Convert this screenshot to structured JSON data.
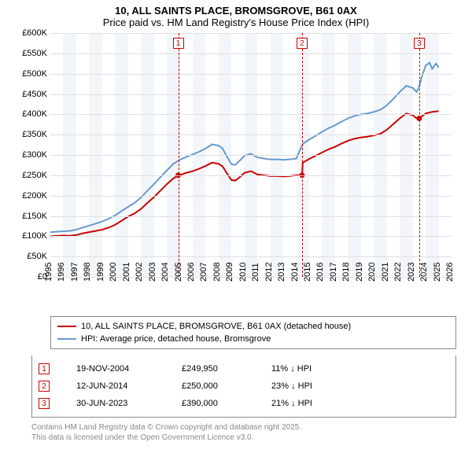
{
  "title": {
    "line1": "10, ALL SAINTS PLACE, BROMSGROVE, B61 0AX",
    "line2": "Price paid vs. HM Land Registry's House Price Index (HPI)"
  },
  "chart": {
    "type": "line",
    "background_color": "#ffffff",
    "band_color": "#f2f6fa",
    "grid_color": "#e0e0e0",
    "x_min": 1995,
    "x_max": 2026,
    "x_ticks": [
      1995,
      1996,
      1997,
      1998,
      1999,
      2000,
      2001,
      2002,
      2003,
      2004,
      2005,
      2006,
      2007,
      2008,
      2009,
      2010,
      2011,
      2012,
      2013,
      2014,
      2015,
      2016,
      2017,
      2018,
      2019,
      2020,
      2021,
      2022,
      2023,
      2024,
      2025,
      2026
    ],
    "y_min": 0,
    "y_max": 600000,
    "y_ticks": [
      0,
      50000,
      100000,
      150000,
      200000,
      250000,
      300000,
      350000,
      400000,
      450000,
      500000,
      550000,
      600000
    ],
    "y_tick_labels": [
      "£0",
      "£50K",
      "£100K",
      "£150K",
      "£200K",
      "£250K",
      "£300K",
      "£350K",
      "£400K",
      "£450K",
      "£500K",
      "£550K",
      "£600K"
    ],
    "series": [
      {
        "name": "property",
        "color": "#cc0000",
        "width": 2,
        "points": [
          [
            1995.0,
            100000
          ],
          [
            1995.5,
            101000
          ],
          [
            1996.0,
            101500
          ],
          [
            1996.5,
            101000
          ],
          [
            1997.0,
            103000
          ],
          [
            1997.5,
            107000
          ],
          [
            1998.0,
            110000
          ],
          [
            1998.5,
            113000
          ],
          [
            1999.0,
            116000
          ],
          [
            1999.5,
            121000
          ],
          [
            2000.0,
            128000
          ],
          [
            2000.5,
            138000
          ],
          [
            2001.0,
            148000
          ],
          [
            2001.5,
            156000
          ],
          [
            2002.0,
            167000
          ],
          [
            2002.5,
            182000
          ],
          [
            2003.0,
            196000
          ],
          [
            2003.5,
            212000
          ],
          [
            2004.0,
            228000
          ],
          [
            2004.5,
            242000
          ],
          [
            2004.88,
            249950
          ],
          [
            2005.0,
            250000
          ],
          [
            2005.5,
            256000
          ],
          [
            2006.0,
            260000
          ],
          [
            2006.5,
            266000
          ],
          [
            2007.0,
            273000
          ],
          [
            2007.5,
            281000
          ],
          [
            2008.0,
            278000
          ],
          [
            2008.3,
            272000
          ],
          [
            2008.7,
            252000
          ],
          [
            2009.0,
            238000
          ],
          [
            2009.3,
            237000
          ],
          [
            2009.7,
            247000
          ],
          [
            2010.0,
            256000
          ],
          [
            2010.5,
            260000
          ],
          [
            2011.0,
            252000
          ],
          [
            2011.5,
            250000
          ],
          [
            2012.0,
            248000
          ],
          [
            2012.5,
            248000
          ],
          [
            2013.0,
            247000
          ],
          [
            2013.5,
            248000
          ],
          [
            2014.0,
            250000
          ],
          [
            2014.45,
            250000
          ],
          [
            2014.5,
            281000
          ],
          [
            2015.0,
            290000
          ],
          [
            2015.5,
            298000
          ],
          [
            2016.0,
            306000
          ],
          [
            2016.5,
            314000
          ],
          [
            2017.0,
            320000
          ],
          [
            2017.5,
            328000
          ],
          [
            2018.0,
            335000
          ],
          [
            2018.5,
            340000
          ],
          [
            2019.0,
            343000
          ],
          [
            2019.5,
            345000
          ],
          [
            2020.0,
            348000
          ],
          [
            2020.5,
            352000
          ],
          [
            2021.0,
            362000
          ],
          [
            2021.5,
            376000
          ],
          [
            2022.0,
            390000
          ],
          [
            2022.5,
            402000
          ],
          [
            2023.0,
            398000
          ],
          [
            2023.3,
            390000
          ],
          [
            2023.5,
            390000
          ],
          [
            2024.0,
            402000
          ],
          [
            2024.5,
            406000
          ],
          [
            2025.0,
            408000
          ]
        ]
      },
      {
        "name": "hpi",
        "color": "#6699cc",
        "width": 2,
        "points": [
          [
            1995.0,
            110000
          ],
          [
            1995.5,
            111000
          ],
          [
            1996.0,
            112000
          ],
          [
            1996.5,
            113000
          ],
          [
            1997.0,
            116000
          ],
          [
            1997.5,
            121000
          ],
          [
            1998.0,
            126000
          ],
          [
            1998.5,
            131000
          ],
          [
            1999.0,
            136000
          ],
          [
            1999.5,
            143000
          ],
          [
            2000.0,
            151000
          ],
          [
            2000.5,
            162000
          ],
          [
            2001.0,
            172000
          ],
          [
            2001.5,
            182000
          ],
          [
            2002.0,
            195000
          ],
          [
            2002.5,
            212000
          ],
          [
            2003.0,
            228000
          ],
          [
            2003.5,
            245000
          ],
          [
            2004.0,
            262000
          ],
          [
            2004.5,
            278000
          ],
          [
            2005.0,
            288000
          ],
          [
            2005.5,
            295000
          ],
          [
            2006.0,
            301000
          ],
          [
            2006.5,
            308000
          ],
          [
            2007.0,
            316000
          ],
          [
            2007.5,
            326000
          ],
          [
            2008.0,
            323000
          ],
          [
            2008.3,
            316000
          ],
          [
            2008.7,
            293000
          ],
          [
            2009.0,
            277000
          ],
          [
            2009.3,
            276000
          ],
          [
            2009.7,
            288000
          ],
          [
            2010.0,
            298000
          ],
          [
            2010.5,
            303000
          ],
          [
            2011.0,
            294000
          ],
          [
            2011.5,
            291000
          ],
          [
            2012.0,
            289000
          ],
          [
            2012.5,
            289000
          ],
          [
            2013.0,
            288000
          ],
          [
            2013.5,
            289000
          ],
          [
            2014.0,
            291000
          ],
          [
            2014.5,
            327000
          ],
          [
            2015.0,
            338000
          ],
          [
            2015.5,
            347000
          ],
          [
            2016.0,
            357000
          ],
          [
            2016.5,
            366000
          ],
          [
            2017.0,
            373000
          ],
          [
            2017.5,
            382000
          ],
          [
            2018.0,
            390000
          ],
          [
            2018.5,
            396000
          ],
          [
            2019.0,
            400000
          ],
          [
            2019.5,
            402000
          ],
          [
            2020.0,
            406000
          ],
          [
            2020.5,
            411000
          ],
          [
            2021.0,
            422000
          ],
          [
            2021.5,
            438000
          ],
          [
            2022.0,
            455000
          ],
          [
            2022.5,
            470000
          ],
          [
            2023.0,
            465000
          ],
          [
            2023.3,
            455000
          ],
          [
            2023.5,
            468000
          ],
          [
            2023.7,
            492000
          ],
          [
            2024.0,
            520000
          ],
          [
            2024.3,
            527000
          ],
          [
            2024.5,
            512000
          ],
          [
            2024.8,
            525000
          ],
          [
            2025.0,
            515000
          ]
        ]
      }
    ],
    "markers": [
      {
        "n": "1",
        "x": 2004.88,
        "y": 249950
      },
      {
        "n": "2",
        "x": 2014.45,
        "y": 250000
      },
      {
        "n": "3",
        "x": 2023.5,
        "y": 390000
      }
    ]
  },
  "legend": {
    "items": [
      {
        "color": "#cc0000",
        "label": "10, ALL SAINTS PLACE, BROMSGROVE, B61 0AX (detached house)"
      },
      {
        "color": "#6699cc",
        "label": "HPI: Average price, detached house, Bromsgrove"
      }
    ]
  },
  "transactions": [
    {
      "n": "1",
      "date": "19-NOV-2004",
      "price": "£249,950",
      "diff": "11% ↓ HPI"
    },
    {
      "n": "2",
      "date": "12-JUN-2014",
      "price": "£250,000",
      "diff": "23% ↓ HPI"
    },
    {
      "n": "3",
      "date": "30-JUN-2023",
      "price": "£390,000",
      "diff": "21% ↓ HPI"
    }
  ],
  "footer": {
    "line1": "Contains HM Land Registry data © Crown copyright and database right 2025.",
    "line2": "This data is licensed under the Open Government Licence v3.0."
  }
}
